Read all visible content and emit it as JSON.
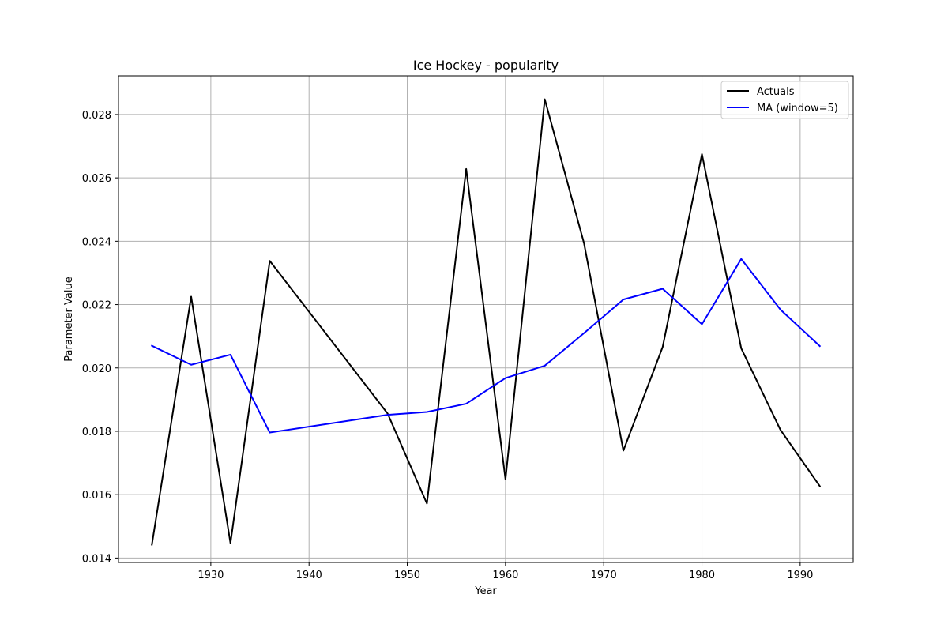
{
  "chart_data": {
    "type": "line",
    "title": "Ice Hockey - popularity",
    "xlabel": "Year",
    "ylabel": "Parameter Value",
    "xlim": [
      1920.6,
      1995.4
    ],
    "ylim": [
      0.01386,
      0.02922
    ],
    "xticks": [
      1930,
      1940,
      1950,
      1960,
      1970,
      1980,
      1990
    ],
    "yticks": [
      0.014,
      0.016,
      0.018,
      0.02,
      0.022,
      0.024,
      0.026,
      0.028
    ],
    "ytick_labels": [
      "0.014",
      "0.016",
      "0.018",
      "0.020",
      "0.022",
      "0.024",
      "0.026",
      "0.028"
    ],
    "grid": true,
    "legend_position": "top-right",
    "x": [
      1924,
      1928,
      1932,
      1936,
      1948,
      1952,
      1956,
      1960,
      1964,
      1968,
      1972,
      1976,
      1980,
      1984,
      1988,
      1992
    ],
    "series": [
      {
        "name": "Actuals",
        "color": "#000000",
        "values": [
          0.01442,
          0.02225,
          0.01447,
          0.02338,
          0.01856,
          0.01572,
          0.02628,
          0.01648,
          0.02848,
          0.02393,
          0.01739,
          0.02066,
          0.02675,
          0.02062,
          0.01804,
          0.01627
        ]
      },
      {
        "name": "MA (window=5)",
        "color": "#0000ff",
        "values": [
          0.0207,
          0.0201,
          0.02042,
          0.01796,
          0.01852,
          0.01861,
          0.01887,
          0.01968,
          0.02007,
          0.0211,
          0.02216,
          0.0225,
          0.02138,
          0.02344,
          0.02184,
          0.02069
        ]
      }
    ]
  }
}
